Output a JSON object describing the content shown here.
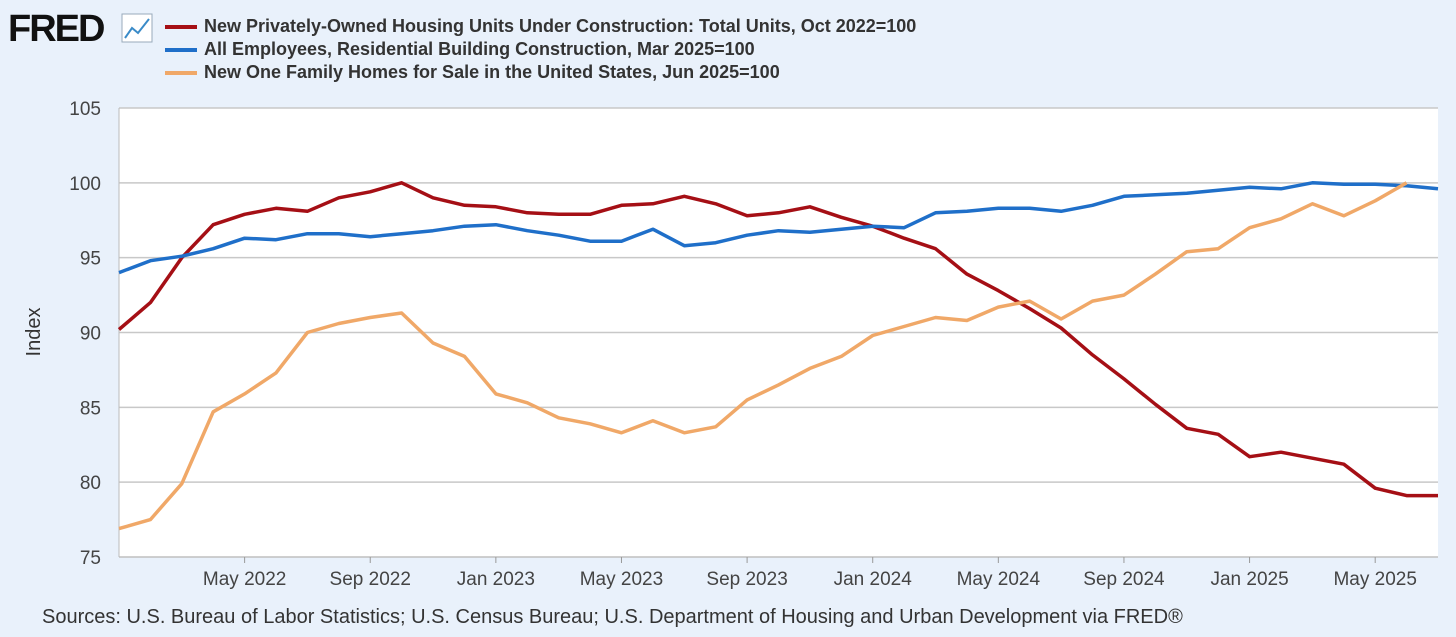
{
  "logo": "FRED",
  "chart_data": {
    "type": "line",
    "sources": "Sources: U.S. Bureau of Labor Statistics; U.S. Census Bureau; U.S. Department of Housing and Urban Development via FRED®",
    "ylabel": "Index",
    "x": [
      "Jan 2022",
      "Feb 2022",
      "Mar 2022",
      "Apr 2022",
      "May 2022",
      "Jun 2022",
      "Jul 2022",
      "Aug 2022",
      "Sep 2022",
      "Oct 2022",
      "Nov 2022",
      "Dec 2022",
      "Jan 2023",
      "Feb 2023",
      "Mar 2023",
      "Apr 2023",
      "May 2023",
      "Jun 2023",
      "Jul 2023",
      "Aug 2023",
      "Sep 2023",
      "Oct 2023",
      "Nov 2023",
      "Dec 2023",
      "Jan 2024",
      "Feb 2024",
      "Mar 2024",
      "Apr 2024",
      "May 2024",
      "Jun 2024",
      "Jul 2024",
      "Aug 2024",
      "Sep 2024",
      "Oct 2024",
      "Nov 2024",
      "Dec 2024",
      "Jan 2025",
      "Feb 2025",
      "Mar 2025",
      "Apr 2025",
      "May 2025",
      "Jun 2025",
      "Jul 2025"
    ],
    "xticks": [
      "May 2022",
      "Sep 2022",
      "Jan 2023",
      "May 2023",
      "Sep 2023",
      "Jan 2024",
      "May 2024",
      "Sep 2024",
      "Jan 2025",
      "May 2025"
    ],
    "ylim": [
      75,
      105
    ],
    "yticks": [
      75,
      80,
      85,
      90,
      95,
      100,
      105
    ],
    "grid": true,
    "series": [
      {
        "name": "New Privately-Owned Housing Units Under Construction: Total Units, Oct 2022=100",
        "color": "#a50f15",
        "values": [
          90.2,
          92,
          95,
          97.2,
          97.9,
          98.3,
          98.1,
          99,
          99.4,
          100,
          99,
          98.5,
          98.4,
          98,
          97.9,
          97.9,
          98.5,
          98.6,
          99.1,
          98.6,
          97.8,
          98,
          98.4,
          97.7,
          97.1,
          96.3,
          95.6,
          93.9,
          92.8,
          91.6,
          90.3,
          88.5,
          86.9,
          85.2,
          83.6,
          83.2,
          81.7,
          82,
          81.6,
          81.2,
          79.6,
          79.1,
          79.1
        ]
      },
      {
        "name": "All Employees, Residential Building Construction, Mar 2025=100",
        "color": "#1f6fc9",
        "values": [
          94,
          94.8,
          95.1,
          95.6,
          96.3,
          96.2,
          96.6,
          96.6,
          96.4,
          96.6,
          96.8,
          97.1,
          97.2,
          96.8,
          96.5,
          96.1,
          96.1,
          96.9,
          95.8,
          96,
          96.5,
          96.8,
          96.7,
          96.9,
          97.1,
          97,
          98,
          98.1,
          98.3,
          98.3,
          98.1,
          98.5,
          99.1,
          99.2,
          99.3,
          99.5,
          99.7,
          99.6,
          100,
          99.9,
          99.9,
          99.8,
          99.6
        ]
      },
      {
        "name": "New One Family Homes for Sale in the United States, Jun 2025=100",
        "color": "#f0a868",
        "values": [
          76.9,
          77.5,
          79.9,
          84.7,
          85.9,
          87.3,
          90,
          90.6,
          91,
          91.3,
          89.3,
          88.4,
          85.9,
          85.3,
          84.3,
          83.9,
          83.3,
          84.1,
          83.3,
          83.7,
          85.5,
          86.5,
          87.6,
          88.4,
          89.8,
          90.4,
          91,
          90.8,
          91.7,
          92.1,
          90.9,
          92.1,
          92.5,
          93.9,
          95.4,
          95.6,
          97,
          97.6,
          98.6,
          97.8,
          98.8,
          100,
          null
        ]
      }
    ]
  }
}
